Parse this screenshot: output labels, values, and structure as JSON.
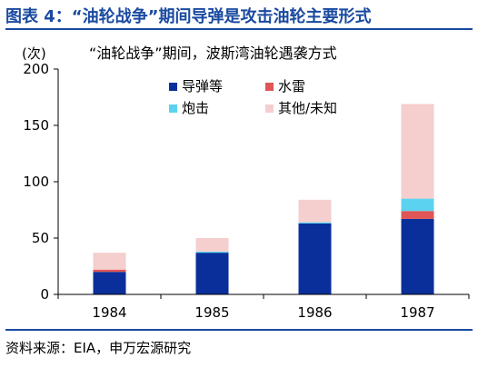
{
  "figure": {
    "title": "图表 4：“油轮战争”期间导弹是攻击油轮主要形式",
    "source": "资料来源：EIA，申万宏源研究"
  },
  "chart_data": {
    "type": "bar",
    "stacked": true,
    "title": "“油轮战争”期间，波斯湾油轮遇袭方式",
    "ylabel": "(次)",
    "xlabel": "",
    "categories": [
      "1984",
      "1985",
      "1986",
      "1987"
    ],
    "ylim": [
      0,
      200
    ],
    "yticks": [
      0,
      50,
      100,
      150,
      200
    ],
    "grid": false,
    "legend_position": "top-center",
    "series": [
      {
        "name": "导弹等",
        "color": "#0b2f9a",
        "values": [
          20,
          37,
          63,
          67
        ]
      },
      {
        "name": "水雷",
        "color": "#e05555",
        "values": [
          2,
          0,
          0,
          7
        ]
      },
      {
        "name": "炮击",
        "color": "#5bd3f0",
        "values": [
          0,
          1,
          1,
          11
        ]
      },
      {
        "name": "其他/未知",
        "color": "#f5cece",
        "values": [
          15,
          12,
          20,
          84
        ]
      }
    ],
    "legend_order": [
      0,
      1,
      2,
      3
    ]
  }
}
